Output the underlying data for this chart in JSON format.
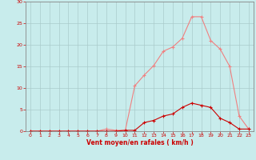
{
  "x": [
    0,
    1,
    2,
    3,
    4,
    5,
    6,
    7,
    8,
    9,
    10,
    11,
    12,
    13,
    14,
    15,
    16,
    17,
    18,
    19,
    20,
    21,
    22,
    23
  ],
  "y_rafales": [
    0,
    0,
    0,
    0,
    0,
    0,
    0,
    0,
    0.5,
    0.2,
    0.2,
    10.5,
    13,
    15.2,
    18.5,
    19.5,
    21.5,
    26.5,
    26.5,
    21,
    19,
    15,
    3.5,
    0.5
  ],
  "y_moyen": [
    0,
    0,
    0,
    0,
    0,
    0,
    0,
    0,
    0,
    0,
    0.2,
    0.2,
    2,
    2.5,
    3.5,
    4,
    5.5,
    6.5,
    6,
    5.5,
    3,
    2,
    0.5,
    0.5
  ],
  "color_rafales": "#f08080",
  "color_moyen": "#cc0000",
  "bg_color": "#c8ecec",
  "grid_color": "#aacccc",
  "axis_color": "#cc0000",
  "spine_color": "#888888",
  "xlabel": "Vent moyen/en rafales ( km/h )",
  "xlim": [
    -0.5,
    23.5
  ],
  "ylim": [
    0,
    30
  ],
  "yticks": [
    0,
    5,
    10,
    15,
    20,
    25,
    30
  ],
  "xticks": [
    0,
    1,
    2,
    3,
    4,
    5,
    6,
    7,
    8,
    9,
    10,
    11,
    12,
    13,
    14,
    15,
    16,
    17,
    18,
    19,
    20,
    21,
    22,
    23
  ],
  "marker": "+"
}
